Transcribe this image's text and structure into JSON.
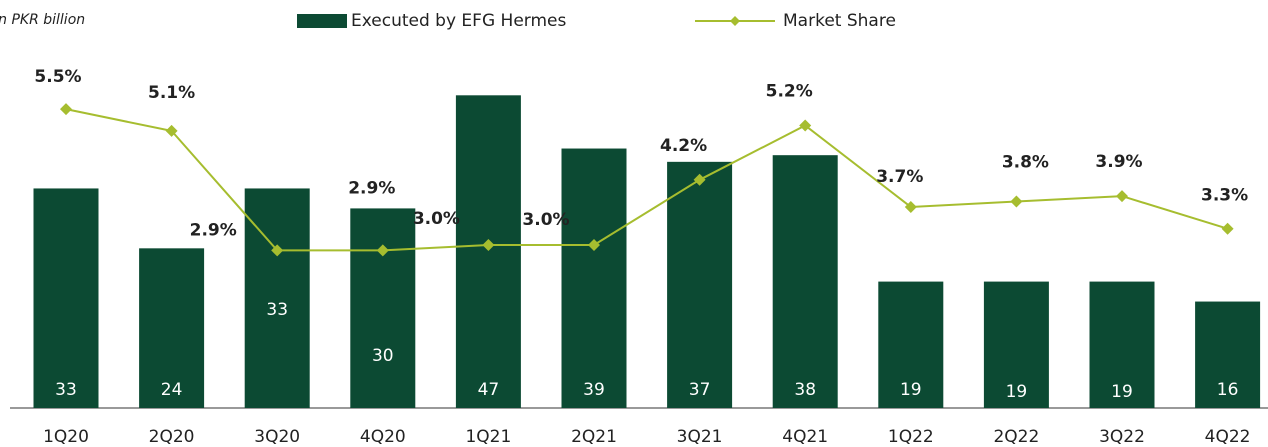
{
  "chart_data": {
    "type": "bar+line",
    "subtitle": "In PKR billion",
    "categories": [
      "1Q20",
      "2Q20",
      "3Q20",
      "4Q20",
      "1Q21",
      "2Q21",
      "3Q21",
      "4Q21",
      "1Q22",
      "2Q22",
      "3Q22",
      "4Q22"
    ],
    "ylim": [
      0,
      49
    ],
    "y2lim": [
      0,
      6
    ],
    "series": [
      {
        "name": "Executed by EFG Hermes",
        "type": "bar",
        "color": "#0c4a33",
        "values": [
          33,
          24,
          33,
          30,
          47,
          39,
          37,
          38,
          19,
          19,
          19,
          16
        ]
      },
      {
        "name": "Market Share",
        "type": "line",
        "axis": "y2",
        "color": "#a6bd2f",
        "values": [
          5.5,
          5.1,
          2.9,
          2.9,
          3.0,
          3.0,
          4.2,
          5.2,
          3.7,
          3.8,
          3.9,
          3.3
        ],
        "value_labels": [
          "5.5%",
          "5.1%",
          "2.9%",
          "2.9%",
          "3.0%",
          "3.0%",
          "4.2%",
          "5.2%",
          "3.7%",
          "3.8%",
          "3.9%",
          "3.3%"
        ]
      }
    ]
  }
}
